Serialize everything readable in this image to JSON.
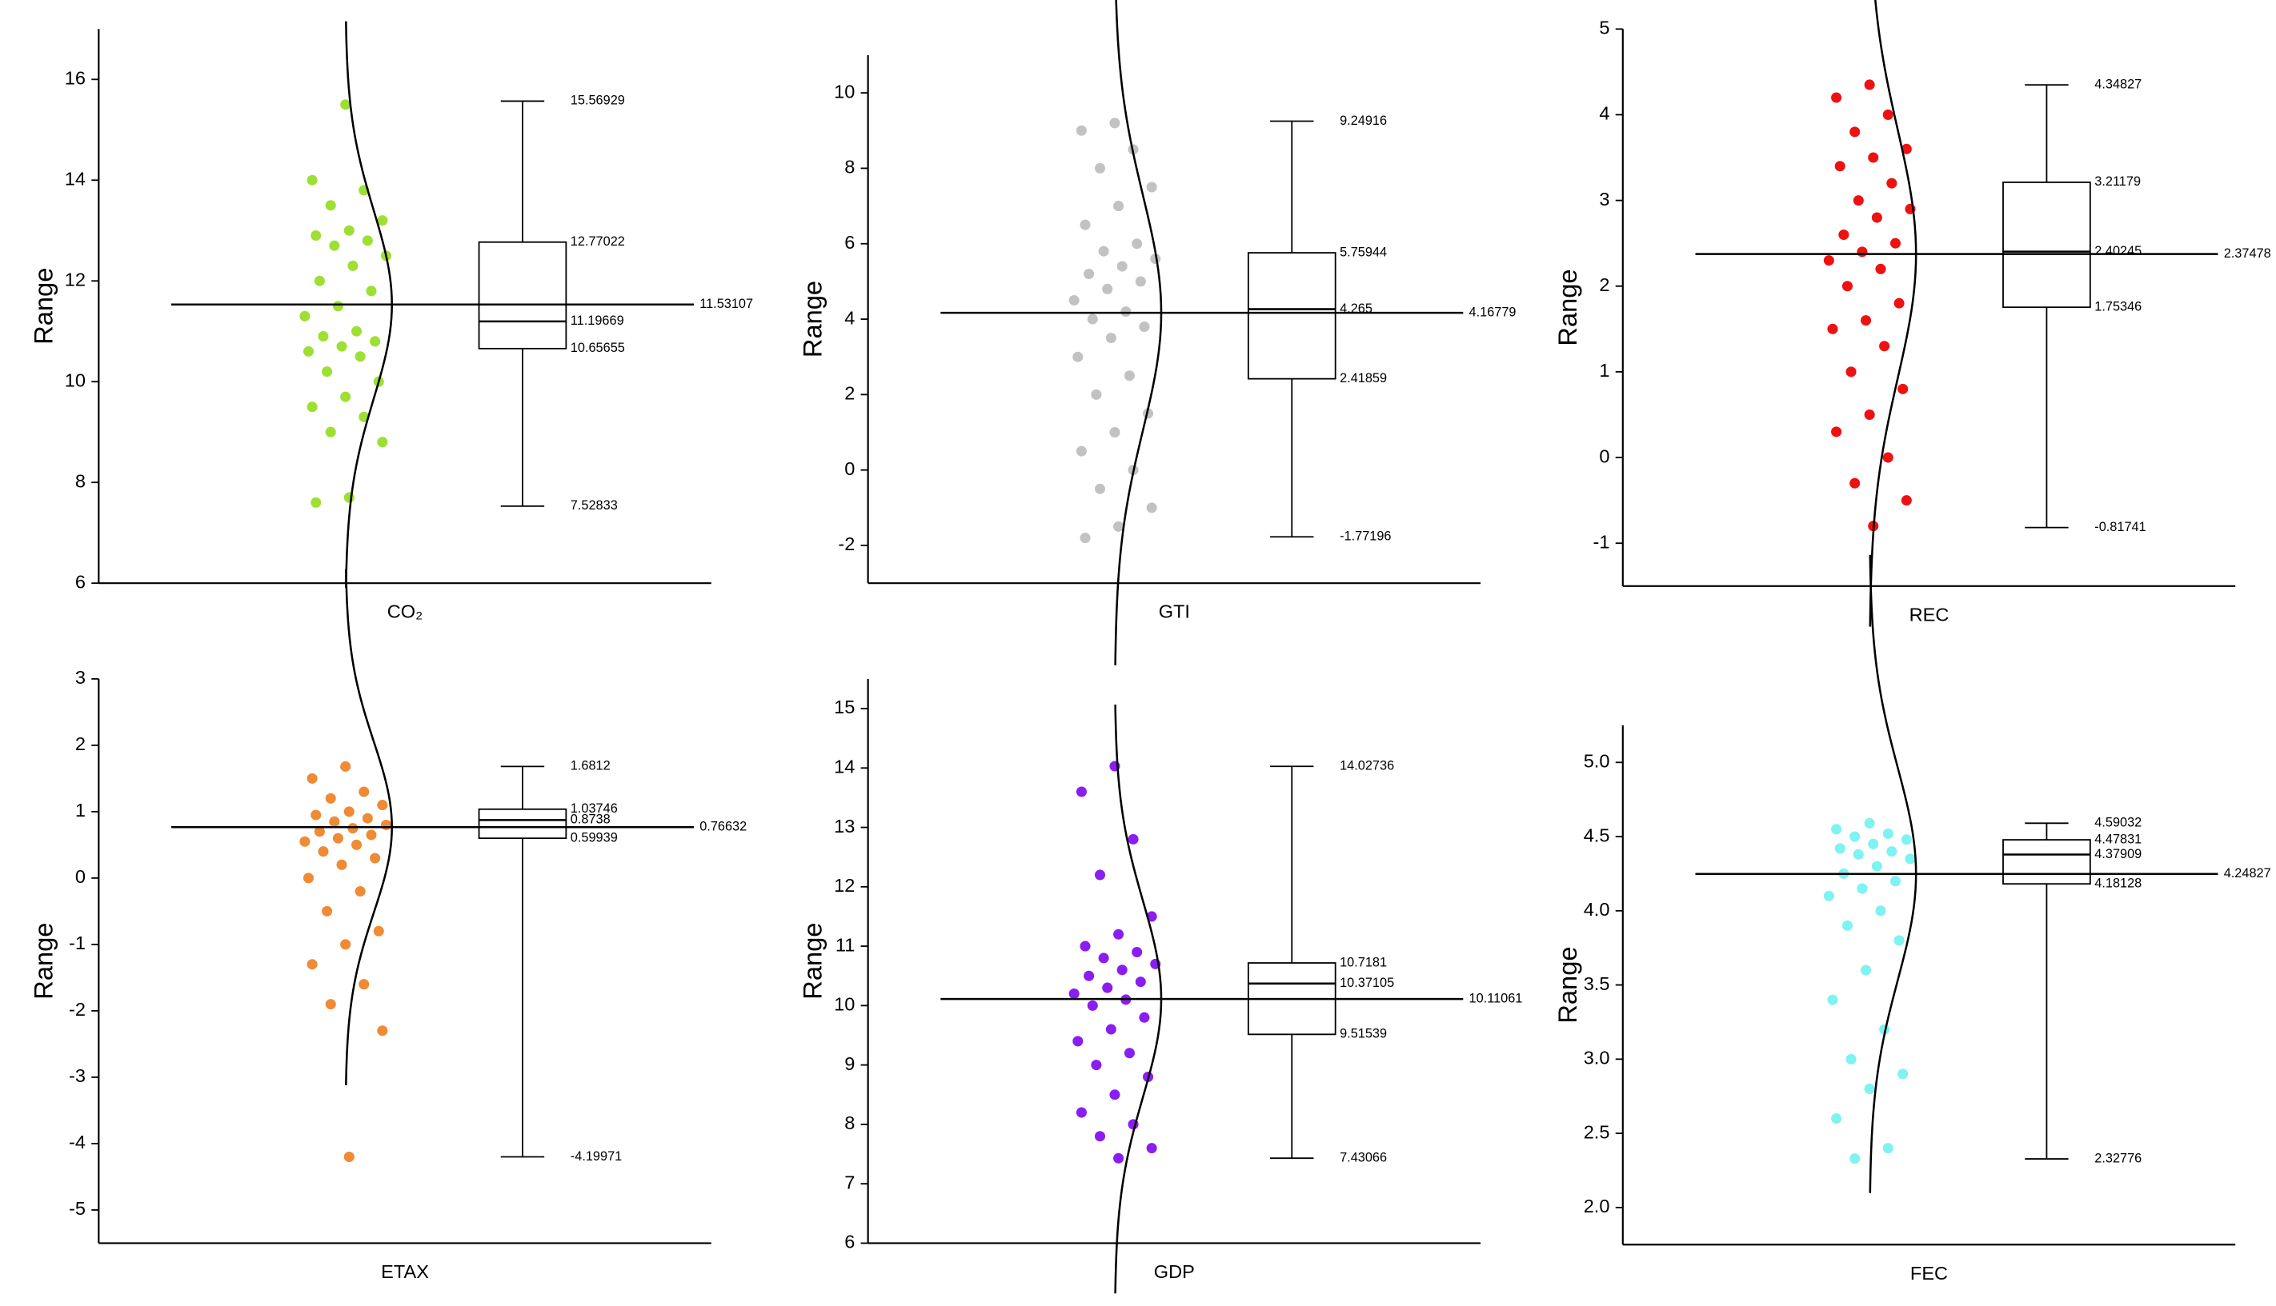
{
  "chart_data": [
    {
      "type": "box",
      "xlabel": "CO₂",
      "ylabel": "Range",
      "color": "#9de033",
      "ylim": [
        6,
        17
      ],
      "yticks": [
        6,
        8,
        10,
        12,
        14,
        16
      ],
      "points": [
        15.5,
        14.0,
        13.8,
        13.5,
        13.2,
        13.0,
        12.9,
        12.8,
        12.7,
        12.5,
        12.3,
        12.0,
        11.8,
        11.5,
        11.3,
        11.0,
        10.9,
        10.8,
        10.7,
        10.6,
        10.5,
        10.2,
        10.0,
        9.7,
        9.5,
        9.3,
        9.0,
        8.8,
        7.7,
        7.6
      ],
      "box": {
        "max": 15.56929,
        "q3": 12.77022,
        "median": 11.19669,
        "q1": 10.65655,
        "min": 7.52833,
        "mean": 11.53107
      }
    },
    {
      "type": "box",
      "xlabel": "GTI",
      "ylabel": "Range",
      "color": "#c2c2c2",
      "ylim": [
        -3,
        11
      ],
      "yticks": [
        -2,
        0,
        2,
        4,
        6,
        8,
        10
      ],
      "points": [
        9.2,
        9.0,
        8.5,
        8.0,
        7.5,
        7.0,
        6.5,
        6.0,
        5.8,
        5.6,
        5.4,
        5.2,
        5.0,
        4.8,
        4.5,
        4.2,
        4.0,
        3.8,
        3.5,
        3.0,
        2.5,
        2.0,
        1.5,
        1.0,
        0.5,
        0,
        -0.5,
        -1.0,
        -1.5,
        -1.8
      ],
      "box": {
        "max": 9.24916,
        "q3": 5.75944,
        "median": 4.265,
        "q1": 2.41859,
        "min": -1.77196,
        "mean": 4.16779
      }
    },
    {
      "type": "box",
      "xlabel": "REC",
      "ylabel": "Range",
      "color": "#ee1111",
      "ylim": [
        -1.5,
        5
      ],
      "yticks": [
        -1,
        0,
        1,
        2,
        3,
        4,
        5
      ],
      "points": [
        4.35,
        4.2,
        4.0,
        3.8,
        3.6,
        3.5,
        3.4,
        3.2,
        3.0,
        2.9,
        2.8,
        2.6,
        2.5,
        2.4,
        2.3,
        2.2,
        2.0,
        1.8,
        1.6,
        1.5,
        1.3,
        1.0,
        0.8,
        0.5,
        0.3,
        0,
        -0.3,
        -0.5,
        -0.8
      ],
      "box": {
        "max": 4.34827,
        "q3": 3.21179,
        "median": 2.40245,
        "q1": 1.75346,
        "min": -0.81741,
        "mean": 2.37478
      }
    },
    {
      "type": "box",
      "xlabel": "ETAX",
      "ylabel": "Range",
      "color": "#f08a35",
      "ylim": [
        -5.5,
        3
      ],
      "yticks": [
        -5,
        -4,
        -3,
        -2,
        -1,
        0,
        1,
        2,
        3
      ],
      "points": [
        1.68,
        1.5,
        1.3,
        1.2,
        1.1,
        1.0,
        0.95,
        0.9,
        0.85,
        0.8,
        0.75,
        0.7,
        0.65,
        0.6,
        0.55,
        0.5,
        0.4,
        0.3,
        0.2,
        0,
        -0.2,
        -0.5,
        -0.8,
        -1.0,
        -1.3,
        -1.6,
        -1.9,
        -2.3,
        -4.2
      ],
      "box": {
        "max": 1.6812,
        "q3": 1.03746,
        "median": 0.8738,
        "q1": 0.59939,
        "min": -4.19971,
        "mean": 0.76632
      }
    },
    {
      "type": "box",
      "xlabel": "GDP",
      "ylabel": "Range",
      "color": "#8a1ef0",
      "ylim": [
        6,
        15.5
      ],
      "yticks": [
        6,
        7,
        8,
        9,
        10,
        11,
        12,
        13,
        14,
        15
      ],
      "points": [
        14.03,
        13.6,
        12.8,
        12.2,
        11.5,
        11.2,
        11.0,
        10.9,
        10.8,
        10.7,
        10.6,
        10.5,
        10.4,
        10.3,
        10.2,
        10.1,
        10.0,
        9.8,
        9.6,
        9.4,
        9.2,
        9.0,
        8.8,
        8.5,
        8.2,
        8.0,
        7.8,
        7.6,
        7.43
      ],
      "box": {
        "max": 14.02736,
        "q3": 10.7181,
        "median": 10.37105,
        "q1": 9.51539,
        "min": 7.43066,
        "mean": 10.11061
      }
    },
    {
      "type": "box",
      "xlabel": "FEC",
      "ylabel": "Range",
      "color": "#7ff2f2",
      "ylim": [
        1.75,
        5.25
      ],
      "yticks": [
        {
          "value": 2,
          "label": "2.0"
        },
        2.5,
        {
          "value": 3,
          "label": "3.0"
        },
        3.5,
        {
          "value": 4,
          "label": "4.0"
        },
        4.5,
        {
          "value": 5,
          "label": "5.0"
        }
      ],
      "points": [
        4.59,
        4.55,
        4.52,
        4.5,
        4.48,
        4.45,
        4.42,
        4.4,
        4.38,
        4.35,
        4.3,
        4.25,
        4.2,
        4.15,
        4.1,
        4.0,
        3.9,
        3.8,
        3.6,
        3.4,
        3.2,
        3.0,
        2.9,
        2.8,
        2.6,
        2.4,
        2.33
      ],
      "box": {
        "max": 4.59032,
        "q3": 4.47831,
        "median": 4.37909,
        "q1": 4.18128,
        "min": 2.32776,
        "mean": 4.24827
      }
    }
  ]
}
